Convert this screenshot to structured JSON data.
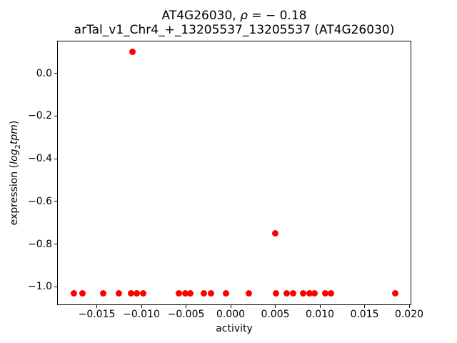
{
  "figure": {
    "title_prefix": "AT4G26030, ",
    "title_rho": "ρ",
    "title_rho_suffix": " = − 0.18",
    "title_line2": "arTal_v1_Chr4_+_13205537_13205537 (AT4G26030)",
    "xlabel": "activity",
    "ylabel_prefix": "expression (",
    "ylabel_log": "log",
    "ylabel_sub": "2",
    "ylabel_tpm": "tpm",
    "ylabel_suffix": ")"
  },
  "chart_data": {
    "type": "scatter",
    "title": "AT4G26030, ρ = − 0.18\narTal_v1_Chr4_+_13205537_13205537 (AT4G26030)",
    "xlabel": "activity",
    "ylabel": "expression (log2 tpm)",
    "marker_color": "#ff0000",
    "marker_diameter_px": 9,
    "axis_color": "#000000",
    "grid": false,
    "legend": "none",
    "xlim": [
      -0.01944,
      0.02024
    ],
    "ylim": [
      -1.087,
      0.151
    ],
    "xticks": {
      "values": [
        -0.015,
        -0.01,
        -0.005,
        0.0,
        0.005,
        0.01,
        0.015,
        0.02
      ],
      "labels": [
        "−0.015",
        "−0.010",
        "−0.005",
        "0.000",
        "0.005",
        "0.010",
        "0.015",
        "0.020"
      ]
    },
    "yticks": {
      "values": [
        0.0,
        -0.2,
        -0.4,
        -0.6,
        -0.8,
        -1.0
      ],
      "labels": [
        "0.0",
        "−0.2",
        "−0.4",
        "−0.6",
        "−0.8",
        "−1.0"
      ]
    },
    "points": [
      [
        -0.0176,
        -1.03
      ],
      [
        -0.0166,
        -1.03
      ],
      [
        -0.0143,
        -1.03
      ],
      [
        -0.0125,
        -1.03
      ],
      [
        -0.0112,
        -1.03
      ],
      [
        -0.0105,
        -1.03
      ],
      [
        -0.0098,
        -1.03
      ],
      [
        -0.0058,
        -1.03
      ],
      [
        -0.0051,
        -1.03
      ],
      [
        -0.0045,
        -1.03
      ],
      [
        -0.003,
        -1.03
      ],
      [
        -0.0022,
        -1.03
      ],
      [
        -0.0005,
        -1.03
      ],
      [
        0.002,
        -1.03
      ],
      [
        0.0051,
        -1.03
      ],
      [
        0.0063,
        -1.03
      ],
      [
        0.007,
        -1.03
      ],
      [
        0.0081,
        -1.03
      ],
      [
        0.0088,
        -1.03
      ],
      [
        0.0094,
        -1.03
      ],
      [
        0.0106,
        -1.03
      ],
      [
        0.0112,
        -1.03
      ],
      [
        0.0184,
        -1.03
      ],
      [
        -0.011,
        0.1
      ],
      [
        0.005,
        -0.75
      ]
    ]
  }
}
